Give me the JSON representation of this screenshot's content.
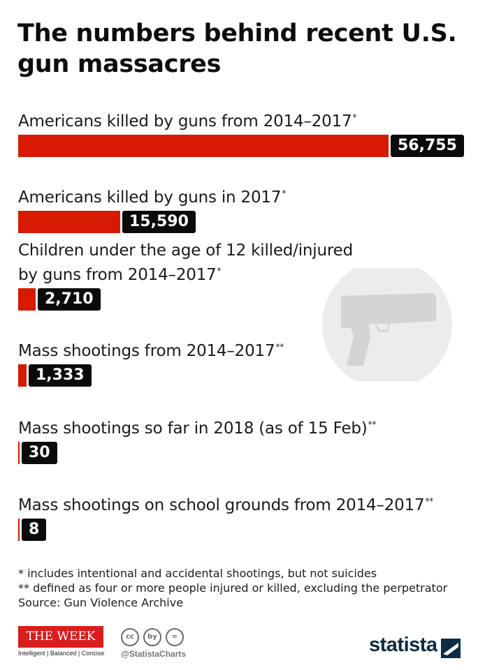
{
  "title": "The numbers behind recent U.S. gun massacres",
  "chart_data": {
    "type": "bar",
    "orientation": "horizontal",
    "categories": [
      "Americans killed by guns from 2014–2017",
      "Americans killed by guns in 2017",
      "Children under the age of 12 killed/injured by guns from 2014–2017",
      "Mass shootings from 2014–2017",
      "Mass shootings so far in 2018 (as of 15 Feb)",
      "Mass shootings on school grounds from 2014–2017"
    ],
    "markers": [
      "*",
      "*",
      "*",
      "**",
      "**",
      "**"
    ],
    "values": [
      56755,
      15590,
      2710,
      1333,
      30,
      8
    ],
    "value_labels": [
      "56,755",
      "15,590",
      "2,710",
      "1,333",
      "30",
      "8"
    ],
    "bar_color": "#d71a00",
    "label_box_color": "#0b0b0b"
  },
  "footnotes": {
    "note1": "*   includes intentional and accidental shootings, but not suicides",
    "note2": "** defined as four or more people injured or killed, excluding the perpetrator",
    "source": "Source: Gun Violence Archive"
  },
  "branding": {
    "publisher_logo": "THE WEEK",
    "publisher_tagline": "Intelligent | Balanced | Concise",
    "license_icons": [
      "cc",
      "by",
      "="
    ],
    "handle": "@StatistaCharts",
    "statista": "statista"
  },
  "icons": [
    "gun-icon",
    "creative-commons-icon",
    "statista-logo-icon"
  ]
}
